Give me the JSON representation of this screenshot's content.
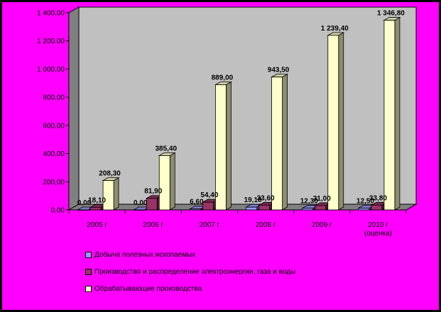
{
  "chart_data": {
    "type": "bar",
    "title": "",
    "xlabel": "",
    "ylabel": "",
    "ylim": [
      0,
      1400
    ],
    "yticks": [
      "0,00",
      "200,00",
      "400,00",
      "600,00",
      "800,00",
      "1 000,00",
      "1 200,00",
      "1 400,00"
    ],
    "categories": [
      "2005 г",
      "2006 г",
      "2007 г",
      "2008 г",
      "2009 г",
      "2010 г (оценка)"
    ],
    "category_lines": [
      [
        "2005 г"
      ],
      [
        "2006 г"
      ],
      [
        "2007 г"
      ],
      [
        "2008 г"
      ],
      [
        "2009 г"
      ],
      [
        "2010 г",
        "(оценка)"
      ]
    ],
    "grid": false,
    "legend_position": "bottom",
    "series": [
      {
        "name": "Добыча полезных ископаемых",
        "color": "#9999ff",
        "values": [
          0.0,
          0.0,
          6.6,
          19.1,
          12.3,
          12.5
        ],
        "labels": [
          "0,00",
          "0,00",
          "6,60",
          "19,10",
          "12,30",
          "12,50"
        ]
      },
      {
        "name": "Производство и распределение электроэнергии, газа и воды",
        "color": "#993366",
        "values": [
          18.1,
          81.9,
          54.4,
          33.6,
          31.0,
          33.8
        ],
        "labels": [
          "18,10",
          "81,90",
          "54,40",
          "33,60",
          "31,00",
          "33,80"
        ]
      },
      {
        "name": "Обрабатывающие производства",
        "color": "#ffffcc",
        "values": [
          208.3,
          385.4,
          889.0,
          943.5,
          1239.4,
          1346.8
        ],
        "labels": [
          "208,30",
          "385,40",
          "889,00",
          "943,50",
          "1 239,40",
          "1 346,80"
        ]
      }
    ]
  }
}
